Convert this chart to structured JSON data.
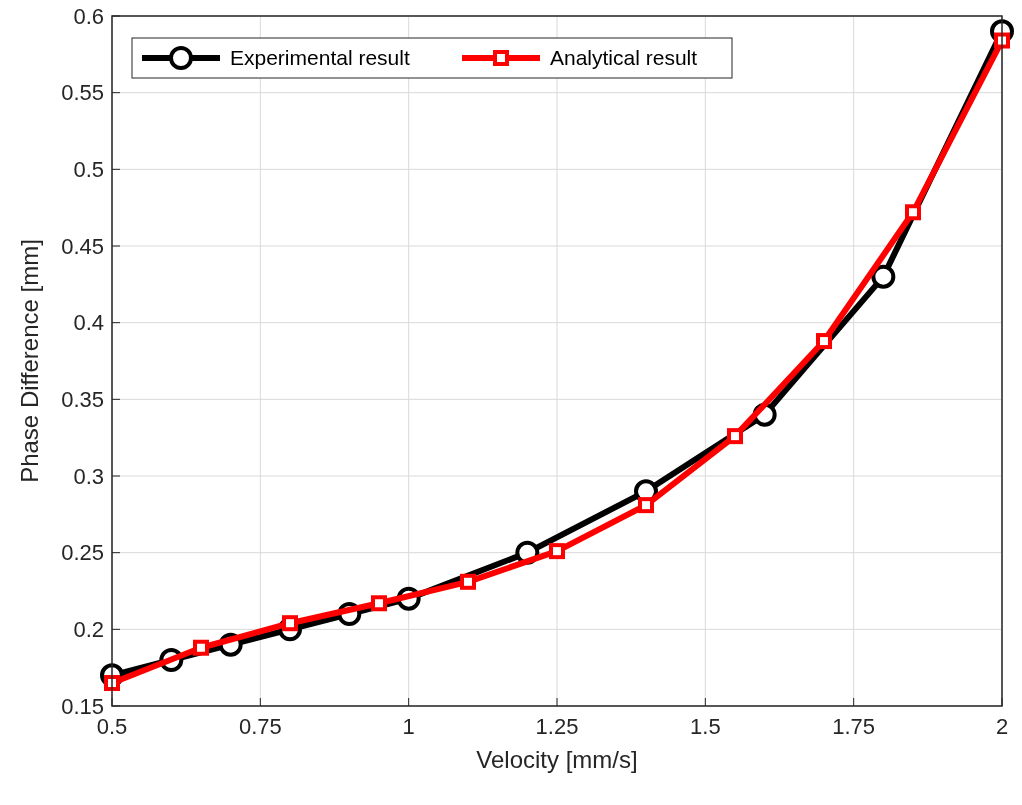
{
  "chart_data": {
    "type": "line",
    "xlabel": "Velocity [mm/s]",
    "ylabel": "Phase Difference [mm]",
    "xlim": [
      0.5,
      2
    ],
    "xticks": [
      0.5,
      0.75,
      1,
      1.25,
      1.5,
      1.75,
      2
    ],
    "ylim": [
      0.15,
      0.6
    ],
    "yticks": [
      0.15,
      0.2,
      0.25,
      0.3,
      0.35,
      0.4,
      0.45,
      0.5,
      0.55,
      0.6
    ],
    "grid": true,
    "legend": "top left",
    "series": [
      {
        "name": "Experimental result",
        "color": "#000000",
        "marker": "circle",
        "x": [
          0.5,
          0.6,
          0.7,
          0.8,
          0.9,
          1.0,
          1.2,
          1.4,
          1.6,
          1.8,
          2.0
        ],
        "values": [
          0.17,
          0.18,
          0.19,
          0.2,
          0.21,
          0.22,
          0.25,
          0.29,
          0.34,
          0.43,
          0.59
        ]
      },
      {
        "name": "Analytical result",
        "color": "#ff0000",
        "marker": "square",
        "x": [
          0.5,
          0.65,
          0.8,
          0.95,
          1.1,
          1.25,
          1.4,
          1.55,
          1.7,
          1.85,
          2.0
        ],
        "values": [
          0.165,
          0.188,
          0.204,
          0.217,
          0.231,
          0.251,
          0.281,
          0.326,
          0.388,
          0.472,
          0.584
        ]
      }
    ]
  }
}
